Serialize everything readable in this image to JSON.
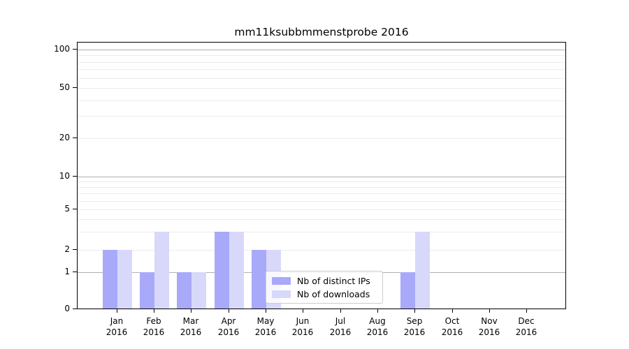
{
  "chart_data": {
    "type": "bar",
    "title": "mm11ksubbmmenstprobe 2016",
    "x_year": "2016",
    "categories": [
      "Jan",
      "Feb",
      "Mar",
      "Apr",
      "May",
      "Jun",
      "Jul",
      "Aug",
      "Sep",
      "Oct",
      "Nov",
      "Dec"
    ],
    "series": [
      {
        "name": "Nb of distinct IPs",
        "color": "#a9a9fa",
        "values": [
          2,
          1,
          1,
          3,
          2,
          0,
          0,
          0,
          1,
          0,
          0,
          0
        ]
      },
      {
        "name": "Nb of downloads",
        "color": "#d8d8fa",
        "values": [
          2,
          3,
          1,
          3,
          2,
          0,
          0,
          0,
          3,
          0,
          0,
          0
        ]
      }
    ],
    "yticks": [
      0,
      1,
      2,
      5,
      10,
      20,
      50,
      100
    ],
    "ylim": [
      0,
      110
    ],
    "yscale": "symlog",
    "xlabel": "",
    "ylabel": "",
    "grid": {
      "major_values": [
        1,
        10,
        100
      ],
      "minor_values": [
        2,
        3,
        4,
        5,
        6,
        7,
        8,
        9,
        20,
        30,
        40,
        50,
        60,
        70,
        80,
        90
      ],
      "major_color": "#b0b0b0",
      "minor_color": "#ececec"
    },
    "legend": {
      "position": "lower center inside plot"
    }
  }
}
